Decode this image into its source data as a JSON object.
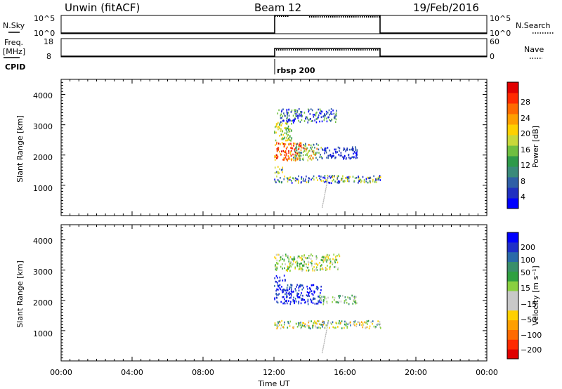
{
  "header": {
    "station": "Unwin (fitACF)",
    "beam": "Beam 12",
    "date": "19/Feb/2016"
  },
  "nsky_panel": {
    "left_label": "N.Sky",
    "right_label": "N.Search",
    "left_ticks": [
      "10^5",
      "10^0"
    ],
    "right_ticks": [
      "10^5",
      "10^0"
    ]
  },
  "freq_panel": {
    "left_label_line1": "Freq.",
    "left_label_line2": "[MHz]",
    "right_label": "Nave",
    "left_ticks": [
      "18",
      "8"
    ],
    "right_ticks": [
      "60",
      "0"
    ]
  },
  "cpid_panel": {
    "label": "CPID",
    "program": "rbsp 200"
  },
  "x_axis": {
    "label": "Time UT",
    "tick_labels": [
      "00:00",
      "04:00",
      "08:00",
      "12:00",
      "16:00",
      "20:00",
      "00:00"
    ]
  },
  "power_panel": {
    "y_label": "Slant Range [km]",
    "y_ticks": [
      "4000",
      "3000",
      "2000",
      "1000"
    ],
    "colorbar_label": "Power [dB]",
    "colorbar_ticks": [
      "28",
      "24",
      "20",
      "16",
      "12",
      "8",
      "4"
    ],
    "colors": [
      "#0000ff",
      "#2030c0",
      "#2f5fa6",
      "#3a8a7a",
      "#2e9a4a",
      "#6fbf40",
      "#c8d83a",
      "#ffd000",
      "#ff9f00",
      "#ff6a00",
      "#ff2a00",
      "#e00000"
    ]
  },
  "velocity_panel": {
    "y_label": "Slant Range [km]",
    "y_ticks": [
      "4000",
      "3000",
      "2000",
      "1000"
    ],
    "colorbar_label": "Velocity [m s⁻¹]",
    "colorbar_ticks": [
      "200",
      "100",
      "50",
      "15",
      "−15",
      "−50",
      "−100",
      "−200"
    ],
    "colors": [
      "#0000ff",
      "#1f2fc8",
      "#2a6aa8",
      "#3a8f6a",
      "#2fa040",
      "#8ad040",
      "#c8c8c8",
      "#c8c8c8",
      "#ffd000",
      "#ff9f00",
      "#ff6a00",
      "#ff2a00",
      "#e00000"
    ]
  },
  "chart_data": [
    {
      "type": "line",
      "panel": "nsky_nsearch",
      "x": [
        "12:00",
        "12:10",
        "13:50",
        "18:00",
        "18:00"
      ],
      "y_left_scale": "log",
      "note_levels": "N.Sky near 10^5 from 12:00 to 18:00, 10^0 otherwise",
      "active_interval": [
        "12:00",
        "18:00"
      ]
    },
    {
      "type": "line",
      "panel": "freq_nave",
      "active_interval": [
        "12:00",
        "18:00"
      ],
      "ylim_left": [
        8,
        18
      ],
      "ylim_right": [
        0,
        60
      ]
    },
    {
      "type": "heatmap",
      "panel": "power",
      "x_range": [
        "00:00",
        "24:00"
      ],
      "ylim": [
        0,
        4500
      ],
      "y_unit": "km",
      "zlim": [
        0,
        32
      ],
      "z_unit": "dB",
      "scatter_regions": [
        {
          "time": [
            "12:00",
            "18:00"
          ],
          "range_km": [
            1100,
            1350
          ],
          "level_db": "4-20"
        },
        {
          "time": [
            "12:00",
            "14:30"
          ],
          "range_km": [
            1800,
            2400
          ],
          "level_db": "16-30"
        },
        {
          "time": [
            "12:00",
            "15:40"
          ],
          "range_km": [
            2600,
            3500
          ],
          "level_db": "4-20"
        },
        {
          "time": [
            "14:40",
            "16:40"
          ],
          "range_km": [
            1850,
            2450
          ],
          "level_db": "4-12"
        }
      ]
    },
    {
      "type": "heatmap",
      "panel": "velocity",
      "x_range": [
        "00:00",
        "24:00"
      ],
      "ylim": [
        0,
        4500
      ],
      "y_unit": "km",
      "zlim": [
        -250,
        250
      ],
      "z_unit": "m s⁻¹",
      "scatter_regions": [
        {
          "time": [
            "12:00",
            "14:30"
          ],
          "range_km": [
            1900,
            2500
          ],
          "velocity": "100-250"
        },
        {
          "time": [
            "12:00",
            "18:00"
          ],
          "range_km": [
            1100,
            1350
          ],
          "velocity": "-50-50"
        },
        {
          "time": [
            "12:00",
            "15:40"
          ],
          "range_km": [
            2800,
            3500
          ],
          "velocity": "-15-50"
        }
      ]
    }
  ]
}
